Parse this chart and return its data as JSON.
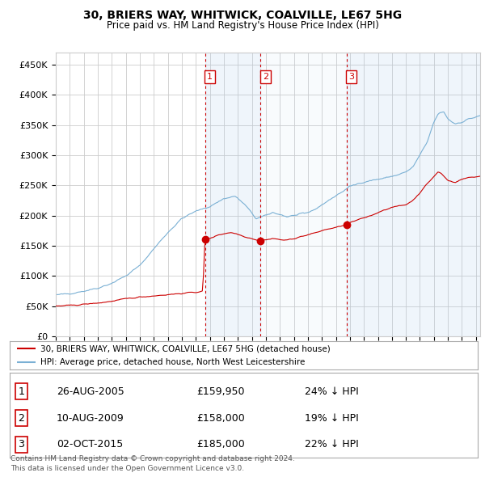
{
  "title": "30, BRIERS WAY, WHITWICK, COALVILLE, LE67 5HG",
  "subtitle": "Price paid vs. HM Land Registry's House Price Index (HPI)",
  "ylabel_ticks": [
    "£0",
    "£50K",
    "£100K",
    "£150K",
    "£200K",
    "£250K",
    "£300K",
    "£350K",
    "£400K",
    "£450K"
  ],
  "ytick_values": [
    0,
    50000,
    100000,
    150000,
    200000,
    250000,
    300000,
    350000,
    400000,
    450000
  ],
  "ylim": [
    0,
    470000
  ],
  "xlim_start": 1995.0,
  "xlim_end": 2025.3,
  "legend_line1": "30, BRIERS WAY, WHITWICK, COALVILLE, LE67 5HG (detached house)",
  "legend_line2": "HPI: Average price, detached house, North West Leicestershire",
  "red_line_color": "#cc0000",
  "blue_line_color": "#7ab0d4",
  "shade_color": "#ddeeff",
  "transaction_color": "#cc0000",
  "vline_color": "#cc0000",
  "grid_color": "#cccccc",
  "background_color": "#ffffff",
  "transactions": [
    {
      "num": 1,
      "date_x": 2005.65,
      "price": 159950,
      "label": "1",
      "date_str": "26-AUG-2005",
      "price_str": "£159,950",
      "pct_str": "24% ↓ HPI"
    },
    {
      "num": 2,
      "date_x": 2009.62,
      "price": 158000,
      "label": "2",
      "date_str": "10-AUG-2009",
      "price_str": "£158,000",
      "pct_str": "19% ↓ HPI"
    },
    {
      "num": 3,
      "date_x": 2015.75,
      "price": 185000,
      "label": "3",
      "date_str": "02-OCT-2015",
      "price_str": "£185,000",
      "pct_str": "22% ↓ HPI"
    }
  ],
  "footer_line1": "Contains HM Land Registry data © Crown copyright and database right 2024.",
  "footer_line2": "This data is licensed under the Open Government Licence v3.0."
}
